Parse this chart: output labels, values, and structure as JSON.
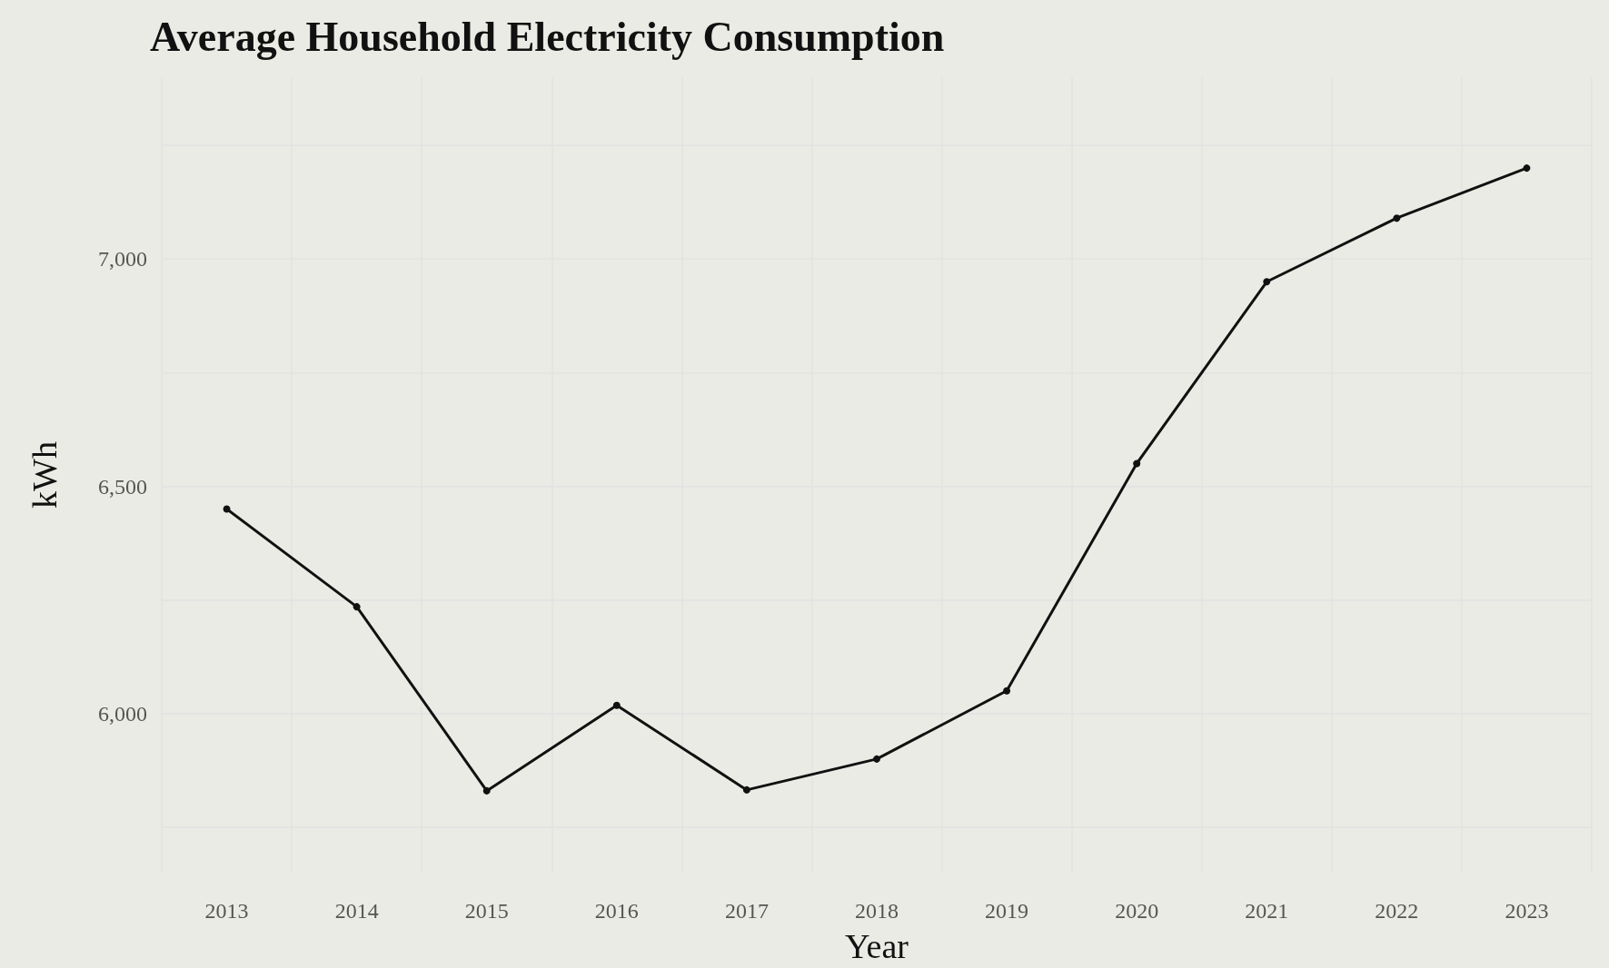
{
  "chart_data": {
    "type": "line",
    "title": "Average Household Electricity Consumption",
    "xlabel": "Year",
    "ylabel": "kWh",
    "categories": [
      "2013",
      "2014",
      "2015",
      "2016",
      "2017",
      "2018",
      "2019",
      "2020",
      "2021",
      "2022",
      "2023"
    ],
    "series": [
      {
        "color": "#111111",
        "values": [
          6450,
          6235,
          5830,
          6018,
          5832,
          5900,
          6050,
          6550,
          6950,
          7090,
          7200
        ]
      }
    ],
    "ylim": [
      5650,
      7400
    ],
    "yticks": [
      {
        "value": 5750,
        "label": null
      },
      {
        "value": 6000,
        "label": "6,000"
      },
      {
        "value": 6250,
        "label": null
      },
      {
        "value": 6500,
        "label": "6,500"
      },
      {
        "value": 6750,
        "label": null
      },
      {
        "value": 7000,
        "label": "7,000"
      },
      {
        "value": 7250,
        "label": null
      }
    ],
    "grid": true,
    "marker": "circle",
    "line_style": "solid"
  }
}
